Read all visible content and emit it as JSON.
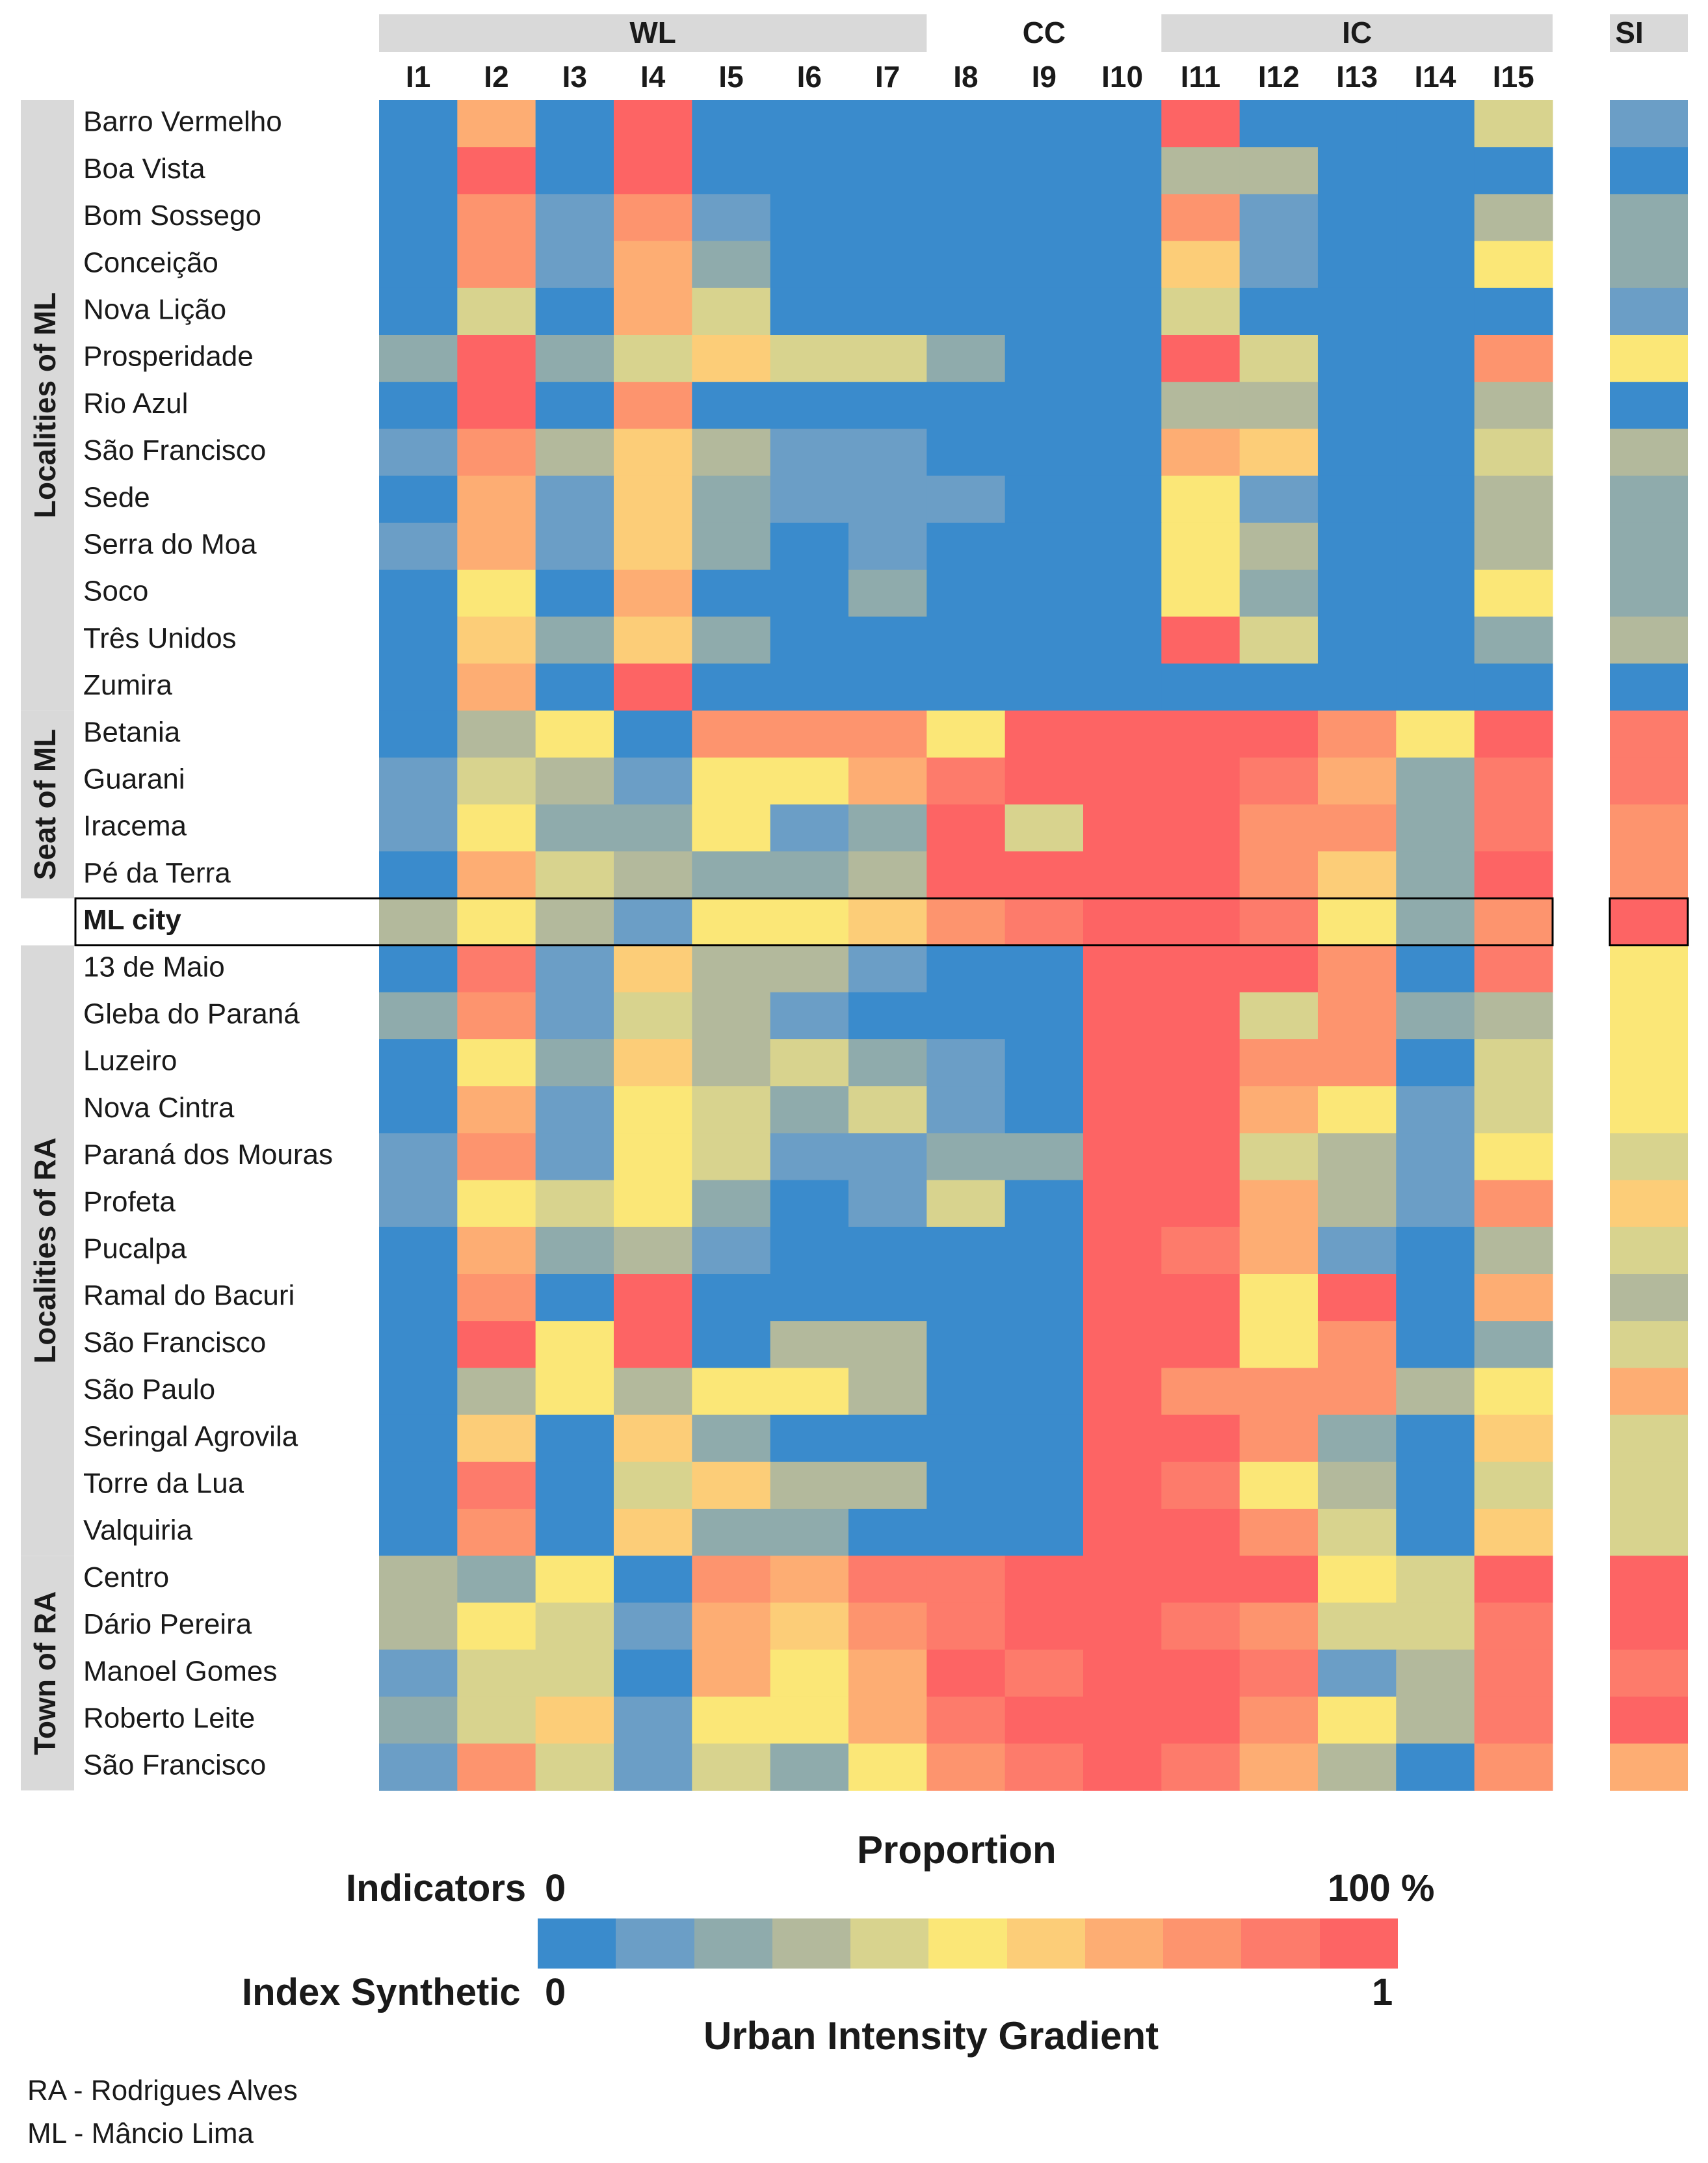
{
  "chart_data": {
    "type": "heatmap",
    "title": "Proportion",
    "subtitle": "Urban Intensity Gradient",
    "groups": [
      {
        "label": "WL",
        "columns": [
          "I1",
          "I2",
          "I3",
          "I4",
          "I5",
          "I6",
          "I7"
        ]
      },
      {
        "label": "CC",
        "columns": [
          "I8",
          "I9",
          "I10"
        ]
      },
      {
        "label": "IC",
        "columns": [
          "I11",
          "I12",
          "I13",
          "I14",
          "I15"
        ]
      }
    ],
    "si_label": "SI",
    "columns": [
      "I1",
      "I2",
      "I3",
      "I4",
      "I5",
      "I6",
      "I7",
      "I8",
      "I9",
      "I10",
      "I11",
      "I12",
      "I13",
      "I14",
      "I15"
    ],
    "sections": [
      {
        "label": "Localities of ML",
        "start": 0,
        "end": 12
      },
      {
        "label": "Seat of ML",
        "start": 13,
        "end": 16
      },
      {
        "label": "Localities of RA",
        "start": 18,
        "end": 30
      },
      {
        "label": "Town of RA",
        "start": 31,
        "end": 35
      }
    ],
    "highlight_row": 17,
    "rows": [
      {
        "name": "Barro Vermelho",
        "values": [
          0,
          7,
          0,
          10,
          0,
          0,
          0,
          0,
          0,
          0,
          10,
          0,
          0,
          0,
          4
        ],
        "si": 1
      },
      {
        "name": "Boa Vista",
        "values": [
          0,
          10,
          0,
          10,
          0,
          0,
          0,
          0,
          0,
          0,
          3,
          3,
          0,
          0,
          0
        ],
        "si": 0
      },
      {
        "name": "Bom Sossego",
        "values": [
          0,
          8,
          1,
          8,
          1,
          0,
          0,
          0,
          0,
          0,
          8,
          1,
          0,
          0,
          3
        ],
        "si": 2
      },
      {
        "name": "Conceição",
        "values": [
          0,
          8,
          1,
          7,
          2,
          0,
          0,
          0,
          0,
          0,
          6,
          1,
          0,
          0,
          5
        ],
        "si": 2
      },
      {
        "name": "Nova Lição",
        "values": [
          0,
          4,
          0,
          7,
          4,
          0,
          0,
          0,
          0,
          0,
          4,
          0,
          0,
          0,
          0
        ],
        "si": 1
      },
      {
        "name": "Prosperidade",
        "values": [
          2,
          10,
          2,
          4,
          6,
          4,
          4,
          2,
          0,
          0,
          10,
          4,
          0,
          0,
          8
        ],
        "si": 5
      },
      {
        "name": "Rio Azul",
        "values": [
          0,
          10,
          0,
          8,
          0,
          0,
          0,
          0,
          0,
          0,
          3,
          3,
          0,
          0,
          3
        ],
        "si": 0
      },
      {
        "name": "São Francisco",
        "values": [
          1,
          8,
          3,
          6,
          3,
          1,
          1,
          0,
          0,
          0,
          7,
          6,
          0,
          0,
          4
        ],
        "si": 3
      },
      {
        "name": "Sede",
        "values": [
          0,
          7,
          1,
          6,
          2,
          1,
          1,
          1,
          0,
          0,
          5,
          1,
          0,
          0,
          3
        ],
        "si": 2
      },
      {
        "name": "Serra do Moa",
        "values": [
          1,
          7,
          1,
          6,
          2,
          0,
          1,
          0,
          0,
          0,
          5,
          3,
          0,
          0,
          3
        ],
        "si": 2
      },
      {
        "name": "Soco",
        "values": [
          0,
          5,
          0,
          7,
          0,
          0,
          2,
          0,
          0,
          0,
          5,
          2,
          0,
          0,
          5
        ],
        "si": 2
      },
      {
        "name": "Três Unidos",
        "values": [
          0,
          6,
          2,
          6,
          2,
          0,
          0,
          0,
          0,
          0,
          10,
          4,
          0,
          0,
          2
        ],
        "si": 3
      },
      {
        "name": "Zumira",
        "values": [
          0,
          7,
          0,
          10,
          0,
          0,
          0,
          0,
          0,
          0,
          0,
          0,
          0,
          0,
          0
        ],
        "si": 0
      },
      {
        "name": "Betania",
        "values": [
          0,
          3,
          5,
          0,
          8,
          8,
          8,
          5,
          10,
          10,
          10,
          10,
          8,
          5,
          10
        ],
        "si": 9
      },
      {
        "name": "Guarani",
        "values": [
          1,
          4,
          3,
          1,
          5,
          5,
          7,
          9,
          10,
          10,
          10,
          9,
          7,
          2,
          9
        ],
        "si": 9
      },
      {
        "name": "Iracema",
        "values": [
          1,
          5,
          2,
          2,
          5,
          1,
          2,
          10,
          4,
          10,
          10,
          8,
          8,
          2,
          9
        ],
        "si": 8
      },
      {
        "name": "Pé da Terra",
        "values": [
          0,
          7,
          4,
          3,
          2,
          2,
          3,
          10,
          10,
          10,
          10,
          8,
          6,
          2,
          10
        ],
        "si": 8
      },
      {
        "name": "ML city",
        "values": [
          3,
          5,
          3,
          1,
          5,
          5,
          6,
          8,
          9,
          10,
          10,
          9,
          5,
          2,
          8
        ],
        "si": 10
      },
      {
        "name": "13 de Maio",
        "values": [
          0,
          9,
          1,
          6,
          3,
          3,
          1,
          0,
          0,
          10,
          10,
          10,
          8,
          0,
          9
        ],
        "si": 5
      },
      {
        "name": "Gleba do Paraná",
        "values": [
          2,
          8,
          1,
          4,
          3,
          1,
          0,
          0,
          0,
          10,
          10,
          4,
          8,
          2,
          3
        ],
        "si": 5
      },
      {
        "name": "Luzeiro",
        "values": [
          0,
          5,
          2,
          6,
          3,
          4,
          2,
          1,
          0,
          10,
          10,
          8,
          8,
          0,
          4
        ],
        "si": 5
      },
      {
        "name": "Nova Cintra",
        "values": [
          0,
          7,
          1,
          5,
          4,
          2,
          4,
          1,
          0,
          10,
          10,
          7,
          5,
          1,
          4
        ],
        "si": 5
      },
      {
        "name": "Paraná dos Mouras",
        "values": [
          1,
          8,
          1,
          5,
          4,
          1,
          1,
          2,
          2,
          10,
          10,
          4,
          3,
          1,
          5
        ],
        "si": 4
      },
      {
        "name": "Profeta",
        "values": [
          1,
          5,
          4,
          5,
          2,
          0,
          1,
          4,
          0,
          10,
          10,
          7,
          3,
          1,
          8
        ],
        "si": 6
      },
      {
        "name": "Pucalpa",
        "values": [
          0,
          7,
          2,
          3,
          1,
          0,
          0,
          0,
          0,
          10,
          9,
          7,
          1,
          0,
          3
        ],
        "si": 4
      },
      {
        "name": "Ramal do Bacuri",
        "values": [
          0,
          8,
          0,
          10,
          0,
          0,
          0,
          0,
          0,
          10,
          10,
          5,
          10,
          0,
          7
        ],
        "si": 3
      },
      {
        "name": "São Francisco",
        "values": [
          0,
          10,
          5,
          10,
          0,
          3,
          3,
          0,
          0,
          10,
          10,
          5,
          8,
          0,
          2
        ],
        "si": 4
      },
      {
        "name": "São Paulo",
        "values": [
          0,
          3,
          5,
          3,
          5,
          5,
          3,
          0,
          0,
          10,
          8,
          8,
          8,
          3,
          5
        ],
        "si": 7
      },
      {
        "name": "Seringal Agrovila",
        "values": [
          0,
          6,
          0,
          6,
          2,
          0,
          0,
          0,
          0,
          10,
          10,
          8,
          2,
          0,
          6
        ],
        "si": 4
      },
      {
        "name": "Torre da Lua",
        "values": [
          0,
          9,
          0,
          4,
          6,
          3,
          3,
          0,
          0,
          10,
          9,
          5,
          3,
          0,
          4
        ],
        "si": 4
      },
      {
        "name": "Valquiria",
        "values": [
          0,
          8,
          0,
          6,
          2,
          2,
          0,
          0,
          0,
          10,
          10,
          8,
          4,
          0,
          6
        ],
        "si": 4
      },
      {
        "name": "Centro",
        "values": [
          3,
          2,
          5,
          0,
          8,
          7,
          9,
          9,
          10,
          10,
          10,
          10,
          5,
          4,
          10
        ],
        "si": 10
      },
      {
        "name": "Dário Pereira",
        "values": [
          3,
          5,
          4,
          1,
          7,
          6,
          8,
          9,
          10,
          10,
          9,
          8,
          4,
          4,
          9
        ],
        "si": 10
      },
      {
        "name": "Manoel Gomes",
        "values": [
          1,
          4,
          4,
          0,
          7,
          5,
          7,
          10,
          9,
          10,
          10,
          9,
          1,
          3,
          9
        ],
        "si": 9
      },
      {
        "name": "Roberto Leite",
        "values": [
          2,
          4,
          6,
          1,
          5,
          5,
          7,
          9,
          10,
          10,
          10,
          8,
          5,
          3,
          9
        ],
        "si": 10
      },
      {
        "name": "São Francisco",
        "values": [
          1,
          8,
          4,
          1,
          4,
          2,
          5,
          8,
          9,
          10,
          9,
          7,
          3,
          0,
          8
        ],
        "si": 7
      }
    ],
    "value_scale": "0 = 0% (blue) ... 10 = 100% (red); SI 0 ... 1",
    "color_scale": [
      "#3a8bcc",
      "#6b9ec6",
      "#8fabac",
      "#b3b99c",
      "#d8d38e",
      "#fbe777",
      "#fccd78",
      "#fdad73",
      "#fd946e",
      "#fd7b6b",
      "#fd6464"
    ]
  },
  "legend": {
    "title": "Proportion",
    "indicators_label": "Indicators",
    "indicators_min": "0",
    "indicators_max": "100 %",
    "synthetic_label": "Index Synthetic",
    "synthetic_min": "0",
    "synthetic_max": "1",
    "gradient_label": "Urban Intensity Gradient"
  },
  "footnotes": {
    "ra": "RA - Rodrigues Alves",
    "ml": "ML - Mâncio Lima"
  }
}
